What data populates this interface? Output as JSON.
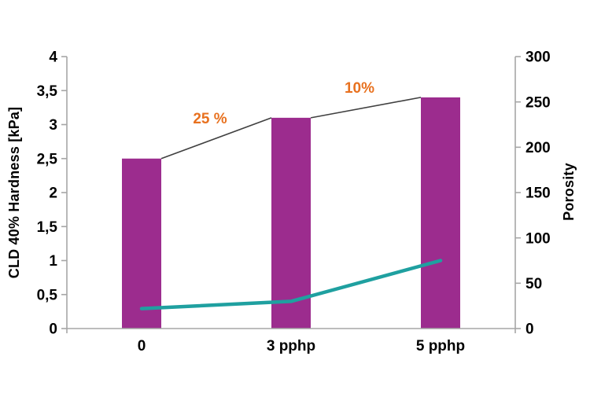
{
  "chart_data": {
    "type": "bar",
    "subtype": "bar-line-combo",
    "categories": [
      "0",
      "3 pphp",
      "5 pphp"
    ],
    "series": [
      {
        "name": "CLD 40% Hardness",
        "render": "bar",
        "axis": "left",
        "values": [
          2.5,
          3.1,
          3.4
        ],
        "color": "#9C2C8E"
      },
      {
        "name": "Porosity",
        "render": "line",
        "axis": "right",
        "values": [
          22,
          30,
          75
        ],
        "color": "#1FA0A0"
      }
    ],
    "connector_line": {
      "description": "thin line joining tops of adjacent bars",
      "color": "#404040"
    },
    "annotations": [
      {
        "text": "25 %",
        "segment": 0,
        "color": "#E8711F"
      },
      {
        "text": "10%",
        "segment": 1,
        "color": "#E8711F"
      }
    ],
    "left_axis": {
      "label": "CLD 40% Hardness [kPa]",
      "min": 0,
      "max": 4,
      "tick_step": 0.5,
      "tick_labels": [
        "0",
        "0,5",
        "1",
        "1,5",
        "2",
        "2,5",
        "3",
        "3,5",
        "4"
      ]
    },
    "right_axis": {
      "label": "Porosity",
      "min": 0,
      "max": 300,
      "tick_step": 50,
      "tick_labels": [
        "0",
        "50",
        "100",
        "150",
        "200",
        "250",
        "300"
      ]
    },
    "grid": false,
    "legend": false,
    "axis_color": "#A6A6A6",
    "text_color": "#000000",
    "background": "#FFFFFF"
  }
}
